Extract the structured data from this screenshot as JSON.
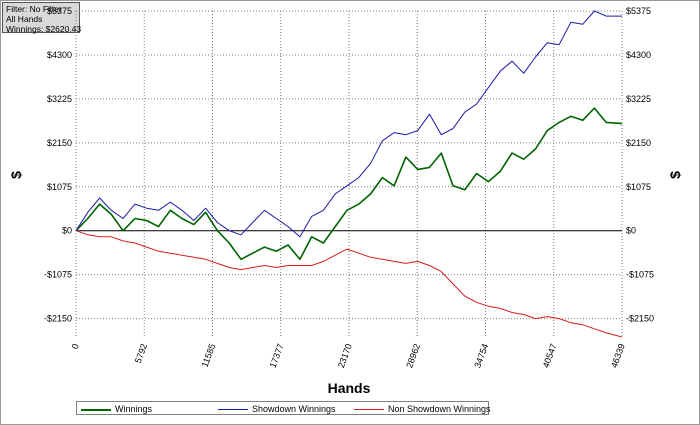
{
  "info": {
    "filter": "Filter: No Filter",
    "hands_scope": "All Hands",
    "winnings": "Winnings: $2620.43"
  },
  "colors": {
    "winnings": "#006400",
    "showdown": "#1a1aa8",
    "non_showdown": "#d42020",
    "grid": "#808080",
    "zero_line": "#000000"
  },
  "chart_data": {
    "type": "line",
    "xlabel": "Hands",
    "ylabel": "$",
    "xlim": [
      0,
      46339
    ],
    "ylim": [
      -2600,
      5375
    ],
    "x_ticks": [
      0,
      5792,
      11585,
      17377,
      23170,
      28962,
      34754,
      40547,
      46339
    ],
    "y_ticks": [
      -2150,
      -1075,
      0,
      1075,
      2150,
      3225,
      4300,
      5375
    ],
    "y_tick_labels": [
      "-$2150",
      "-$1075",
      "$0",
      "$1075",
      "$2150",
      "$3225",
      "$4300",
      "$5375"
    ],
    "grid": true,
    "legend_position": "bottom",
    "series": [
      {
        "name": "Winnings",
        "x": [
          0,
          1000,
          2000,
          3000,
          4000,
          5000,
          6000,
          7000,
          8000,
          9000,
          10000,
          11000,
          12000,
          13000,
          14000,
          15000,
          16000,
          17000,
          18000,
          19000,
          20000,
          21000,
          22000,
          23000,
          24000,
          25000,
          26000,
          27000,
          28000,
          29000,
          30000,
          31000,
          32000,
          33000,
          34000,
          35000,
          36000,
          37000,
          38000,
          39000,
          40000,
          41000,
          42000,
          43000,
          44000,
          45000,
          46339
        ],
        "y": [
          0,
          300,
          650,
          400,
          0,
          300,
          250,
          100,
          500,
          300,
          150,
          450,
          0,
          -300,
          -700,
          -550,
          -400,
          -500,
          -350,
          -700,
          -150,
          -300,
          100,
          500,
          650,
          900,
          1300,
          1100,
          1800,
          1500,
          1550,
          1900,
          1100,
          1000,
          1400,
          1200,
          1450,
          1900,
          1750,
          2000,
          2450,
          2650,
          2800,
          2700,
          3000,
          2650,
          2620
        ]
      },
      {
        "name": "Showdown Winnings",
        "x": [
          0,
          1000,
          2000,
          3000,
          4000,
          5000,
          6000,
          7000,
          8000,
          9000,
          10000,
          11000,
          12000,
          13000,
          14000,
          15000,
          16000,
          17000,
          18000,
          19000,
          20000,
          21000,
          22000,
          23000,
          24000,
          25000,
          26000,
          27000,
          28000,
          29000,
          30000,
          31000,
          32000,
          33000,
          34000,
          35000,
          36000,
          37000,
          38000,
          39000,
          40000,
          41000,
          42000,
          43000,
          44000,
          45000,
          46339
        ],
        "y": [
          0,
          450,
          800,
          500,
          300,
          650,
          550,
          500,
          700,
          500,
          250,
          550,
          200,
          0,
          -100,
          200,
          500,
          300,
          100,
          -150,
          350,
          500,
          900,
          1100,
          1300,
          1650,
          2200,
          2400,
          2350,
          2450,
          2850,
          2350,
          2500,
          2900,
          3100,
          3500,
          3900,
          4150,
          3850,
          4250,
          4600,
          4550,
          5100,
          5050,
          5375,
          5250,
          5250
        ]
      },
      {
        "name": "Non Showdown Winnings",
        "x": [
          0,
          1000,
          2000,
          3000,
          4000,
          5000,
          6000,
          7000,
          8000,
          9000,
          10000,
          11000,
          12000,
          13000,
          14000,
          15000,
          16000,
          17000,
          18000,
          19000,
          20000,
          21000,
          22000,
          23000,
          24000,
          25000,
          26000,
          27000,
          28000,
          29000,
          30000,
          31000,
          32000,
          33000,
          34000,
          35000,
          36000,
          37000,
          38000,
          39000,
          40000,
          41000,
          42000,
          43000,
          44000,
          45000,
          46339
        ],
        "y": [
          0,
          -100,
          -150,
          -150,
          -250,
          -300,
          -400,
          -500,
          -550,
          -600,
          -650,
          -700,
          -800,
          -900,
          -950,
          -900,
          -850,
          -900,
          -850,
          -850,
          -850,
          -750,
          -600,
          -450,
          -550,
          -650,
          -700,
          -750,
          -800,
          -750,
          -850,
          -1000,
          -1300,
          -1600,
          -1750,
          -1850,
          -1900,
          -2000,
          -2050,
          -2150,
          -2100,
          -2150,
          -2250,
          -2300,
          -2400,
          -2500,
          -2600
        ]
      }
    ]
  }
}
